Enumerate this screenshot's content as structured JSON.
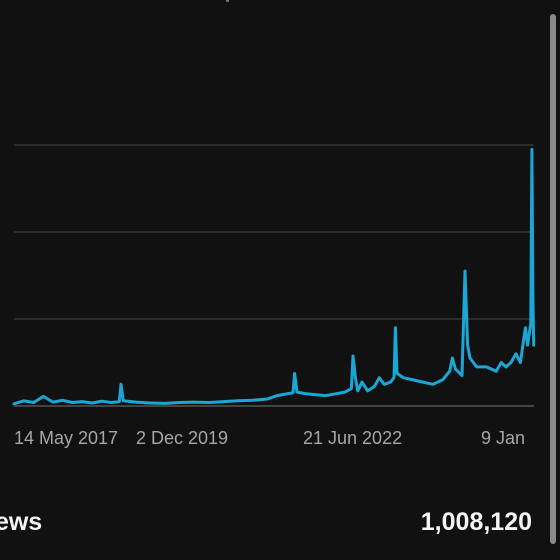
{
  "chart_data": {
    "type": "line",
    "title": "",
    "xlabel": "",
    "ylabel": "",
    "x_tick_labels": [
      "14 May 2017",
      "2 Dec 2019",
      "21 Jun 2022",
      "9 Jan"
    ],
    "x_range": [
      "2016-07-01",
      "2025-05-25"
    ],
    "y_range": [
      0,
      60
    ],
    "gridlines": [
      0,
      20,
      40,
      60
    ],
    "grid": true,
    "legend": "none",
    "series": [
      {
        "points": [
          [
            "2016-07-01",
            0.5
          ],
          [
            "2016-09-01",
            1.2
          ],
          [
            "2016-11-01",
            0.8
          ],
          [
            "2017-01-01",
            2.2
          ],
          [
            "2017-03-01",
            0.9
          ],
          [
            "2017-05-01",
            1.3
          ],
          [
            "2017-07-01",
            0.8
          ],
          [
            "2017-09-01",
            1.0
          ],
          [
            "2017-11-01",
            0.7
          ],
          [
            "2018-01-01",
            1.1
          ],
          [
            "2018-03-01",
            0.8
          ],
          [
            "2018-04-20",
            1.0
          ],
          [
            "2018-05-01",
            5.0
          ],
          [
            "2018-05-15",
            1.2
          ],
          [
            "2018-08-01",
            0.9
          ],
          [
            "2018-11-01",
            0.7
          ],
          [
            "2019-02-01",
            0.6
          ],
          [
            "2019-05-01",
            0.8
          ],
          [
            "2019-08-01",
            0.9
          ],
          [
            "2019-11-01",
            0.8
          ],
          [
            "2020-02-01",
            1.0
          ],
          [
            "2020-05-01",
            1.2
          ],
          [
            "2020-08-01",
            1.3
          ],
          [
            "2020-11-01",
            1.6
          ],
          [
            "2021-01-01",
            2.4
          ],
          [
            "2021-03-01",
            2.8
          ],
          [
            "2021-04-10",
            3.0
          ],
          [
            "2021-04-20",
            7.5
          ],
          [
            "2021-05-05",
            3.2
          ],
          [
            "2021-07-01",
            2.8
          ],
          [
            "2021-09-01",
            2.6
          ],
          [
            "2021-11-01",
            2.4
          ],
          [
            "2022-01-01",
            2.8
          ],
          [
            "2022-03-01",
            3.2
          ],
          [
            "2022-04-10",
            4.0
          ],
          [
            "2022-04-20",
            11.5
          ],
          [
            "2022-05-05",
            6.5
          ],
          [
            "2022-05-20",
            3.5
          ],
          [
            "2022-06-15",
            5.5
          ],
          [
            "2022-07-20",
            3.5
          ],
          [
            "2022-09-01",
            4.5
          ],
          [
            "2022-10-01",
            6.5
          ],
          [
            "2022-11-01",
            5.0
          ],
          [
            "2022-12-10",
            5.5
          ],
          [
            "2023-01-01",
            6.5
          ],
          [
            "2023-01-10",
            18.0
          ],
          [
            "2023-01-20",
            7.5
          ],
          [
            "2023-03-01",
            6.5
          ],
          [
            "2023-05-01",
            6.0
          ],
          [
            "2023-07-01",
            5.5
          ],
          [
            "2023-09-01",
            5.0
          ],
          [
            "2023-11-01",
            6.0
          ],
          [
            "2023-12-15",
            8.0
          ],
          [
            "2024-01-01",
            11.0
          ],
          [
            "2024-01-20",
            8.5
          ],
          [
            "2024-03-01",
            7.0
          ],
          [
            "2024-03-20",
            31.0
          ],
          [
            "2024-04-05",
            14.0
          ],
          [
            "2024-04-20",
            11.0
          ],
          [
            "2024-06-01",
            9.0
          ],
          [
            "2024-08-01",
            9.0
          ],
          [
            "2024-10-01",
            8.0
          ],
          [
            "2024-11-01",
            10.0
          ],
          [
            "2024-12-01",
            9.0
          ],
          [
            "2025-01-01",
            10.0
          ],
          [
            "2025-02-01",
            12.0
          ],
          [
            "2025-03-01",
            10.0
          ],
          [
            "2025-04-01",
            18.0
          ],
          [
            "2025-04-15",
            14.0
          ],
          [
            "2025-05-05",
            19.0
          ],
          [
            "2025-05-12",
            59.0
          ],
          [
            "2025-05-18",
            25.0
          ],
          [
            "2025-05-23",
            14.0
          ]
        ]
      }
    ]
  },
  "summary": {
    "label": "iews",
    "value": "1,008,120"
  },
  "colors": {
    "background": "#111111",
    "line": "#1aa7d6",
    "grid": "#3c3c3c",
    "axis": "#555555",
    "tick_text": "#a6a6a6"
  }
}
